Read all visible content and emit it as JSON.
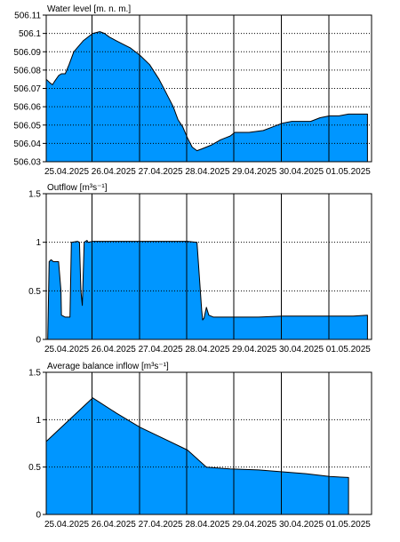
{
  "colors": {
    "fill": "#0096ff",
    "stroke": "#000000",
    "grid": "#000000"
  },
  "date_labels": [
    "25.04.2025",
    "26.04.2025",
    "27.04.2025",
    "28.04.2025",
    "29.04.2025",
    "30.04.2025",
    "01.05.2025"
  ],
  "chart_data": [
    {
      "type": "area",
      "title": "Water level [m. n. m.]",
      "ylim": [
        506.03,
        506.11
      ],
      "yticks": [
        "506.03",
        "506.04",
        "506.05",
        "506.06",
        "506.07",
        "506.08",
        "506.09",
        "506.1",
        "506.11"
      ],
      "grid": true,
      "series": [
        {
          "x": [
            0,
            0.1,
            0.15,
            0.2,
            0.28,
            0.34,
            0.42,
            0.5,
            0.6,
            0.8,
            1.0,
            1.15,
            1.25,
            1.35,
            1.5,
            1.8,
            2.0,
            2.2,
            2.4,
            2.5,
            2.6,
            2.7,
            2.8,
            2.9,
            3.0,
            3.1,
            3.2,
            3.3,
            3.4,
            3.5,
            3.7,
            3.9,
            4.0,
            4.3,
            4.6,
            4.8,
            5.0,
            5.2,
            5.4,
            5.6,
            5.8,
            6.0,
            6.2,
            6.4,
            6.6,
            6.8
          ],
          "y": [
            506.075,
            506.073,
            506.072,
            506.074,
            506.077,
            506.078,
            506.078,
            506.083,
            506.09,
            506.096,
            506.1,
            506.101,
            506.1,
            506.098,
            506.096,
            506.092,
            506.088,
            506.083,
            506.075,
            506.07,
            506.065,
            506.06,
            506.053,
            506.049,
            506.043,
            506.038,
            506.036,
            506.037,
            506.038,
            506.039,
            506.042,
            506.044,
            506.046,
            506.046,
            506.047,
            506.049,
            506.051,
            506.052,
            506.052,
            506.052,
            506.054,
            506.055,
            506.055,
            506.056,
            506.056,
            506.056
          ]
        }
      ]
    },
    {
      "type": "area",
      "title": "Outflow [m³s⁻¹]",
      "ylim": [
        0,
        1.5
      ],
      "yticks": [
        "0",
        "0.5",
        "1",
        "1.5"
      ],
      "grid": true,
      "series": [
        {
          "x": [
            -0.1,
            0.05,
            0.08,
            0.12,
            0.17,
            0.28,
            0.33,
            0.34,
            0.42,
            0.46,
            0.52,
            0.55,
            0.68,
            0.72,
            0.75,
            0.78,
            0.82,
            0.88,
            0.9,
            1.0,
            1.5,
            2.0,
            2.5,
            3.0,
            3.2,
            3.3,
            3.32,
            3.35,
            3.4,
            3.45,
            3.55,
            3.6,
            4.0,
            4.5,
            5.0,
            5.5,
            6.0,
            6.5,
            6.8
          ],
          "y": [
            0,
            0.0,
            0.8,
            0.82,
            0.8,
            0.8,
            0.5,
            0.25,
            0.23,
            0.23,
            0.23,
            1.0,
            1.01,
            1.0,
            0.5,
            0.35,
            1.0,
            1.02,
            1.0,
            1.01,
            1.01,
            1.01,
            1.01,
            1.01,
            1.0,
            0.3,
            0.2,
            0.22,
            0.33,
            0.25,
            0.23,
            0.23,
            0.23,
            0.23,
            0.24,
            0.24,
            0.24,
            0.24,
            0.25
          ]
        }
      ]
    },
    {
      "type": "area",
      "title": "Average balance inflow  [m³s⁻¹]",
      "ylim": [
        0,
        1.5
      ],
      "yticks": [
        "0",
        "0.5",
        "1",
        "1.5"
      ],
      "grid": true,
      "series": [
        {
          "x": [
            0,
            1.0,
            1.5,
            2.0,
            2.5,
            3.0,
            3.4,
            3.9,
            4.5,
            5.0,
            5.5,
            6.0,
            6.4
          ],
          "y": [
            0.77,
            1.23,
            1.07,
            0.92,
            0.8,
            0.68,
            0.5,
            0.48,
            0.47,
            0.45,
            0.43,
            0.4,
            0.39
          ]
        }
      ]
    }
  ]
}
